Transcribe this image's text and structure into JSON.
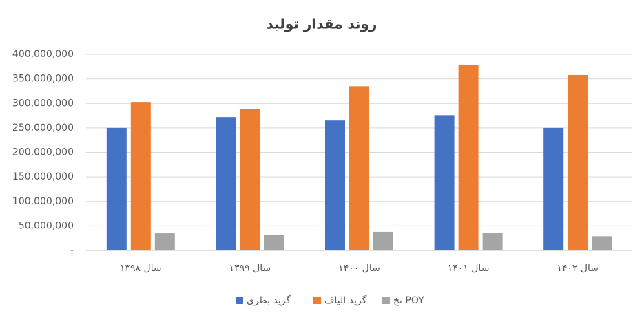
{
  "chart_data": {
    "type": "bar",
    "title": "روند مقدار تولید",
    "categories": [
      "سال ۱۳۹۸",
      "سال ۱۳۹۹",
      "سال ۱۴۰۰",
      "سال ۱۴۰۱",
      "سال ۱۴۰۲"
    ],
    "series": [
      {
        "name": "گرید بطری",
        "color": "#4472c4",
        "values": [
          250000000,
          272000000,
          265000000,
          276000000,
          250000000
        ]
      },
      {
        "name": "گرید الیاف",
        "color": "#ed7d31",
        "values": [
          303000000,
          288000000,
          335000000,
          379000000,
          358000000
        ]
      },
      {
        "name": "نخ POY",
        "color": "#a5a5a5",
        "values": [
          35000000,
          32000000,
          38000000,
          36000000,
          29000000
        ]
      }
    ],
    "ylim": [
      0,
      400000000
    ],
    "yticks": [
      {
        "value": 0,
        "label": "-"
      },
      {
        "value": 50000000,
        "label": "50,000,000"
      },
      {
        "value": 100000000,
        "label": "100,000,000"
      },
      {
        "value": 150000000,
        "label": "150,000,000"
      },
      {
        "value": 200000000,
        "label": "200,000,000"
      },
      {
        "value": 250000000,
        "label": "250,000,000"
      },
      {
        "value": 300000000,
        "label": "300,000,000"
      },
      {
        "value": 350000000,
        "label": "350,000,000"
      },
      {
        "value": 400000000,
        "label": "400,000,000"
      }
    ],
    "grid": true
  }
}
